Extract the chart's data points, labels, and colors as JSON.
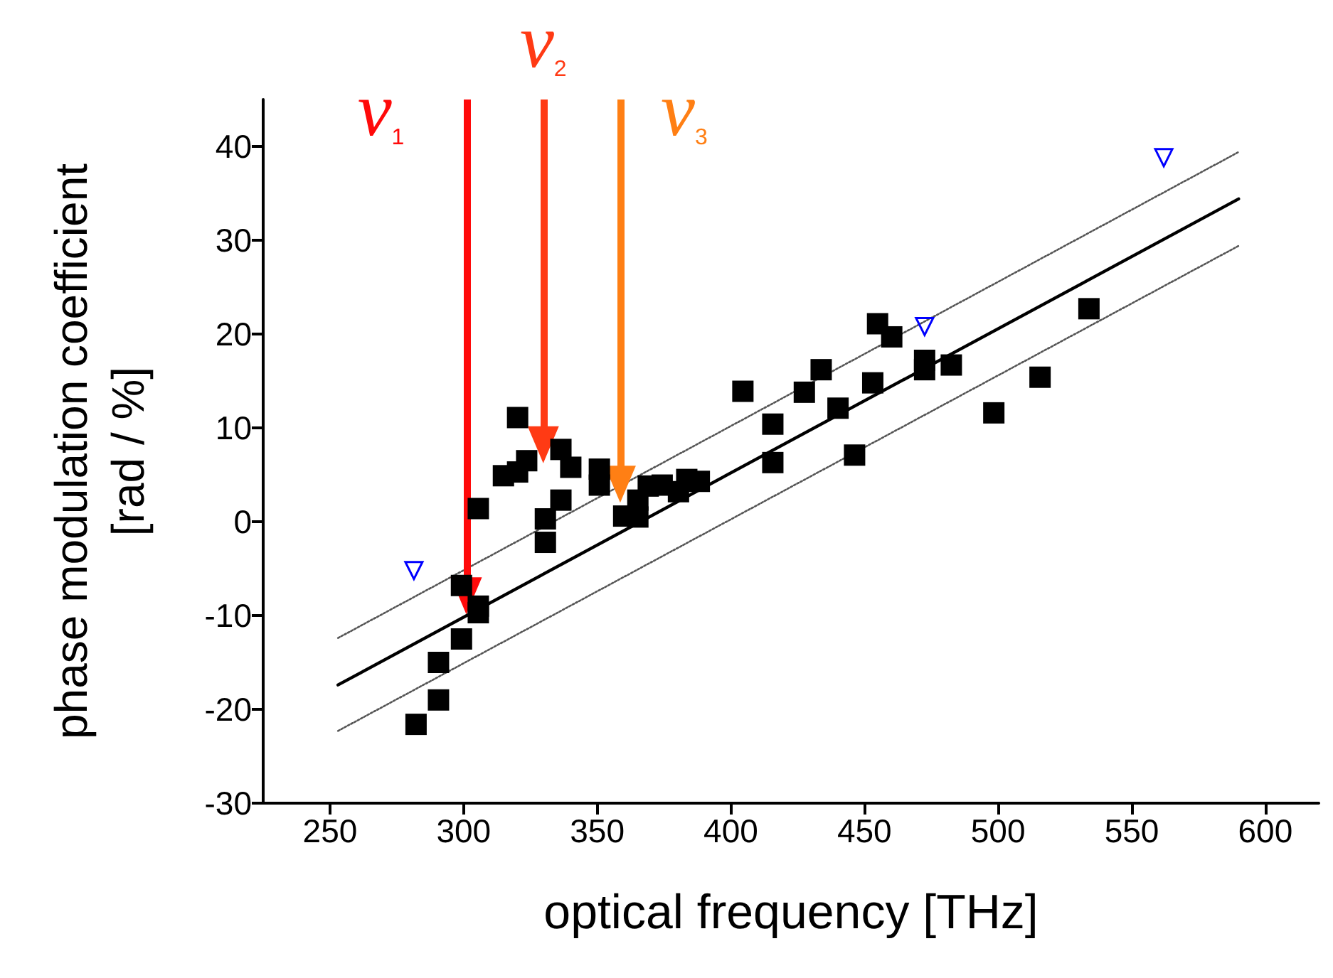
{
  "chart_data": {
    "type": "scatter",
    "xlabel": "optical frequency [THz]",
    "ylabel": "phase modulation coefficient\n[rad / %]",
    "xlim": [
      225,
      620
    ],
    "ylim": [
      -30,
      45
    ],
    "xticks": [
      250,
      300,
      350,
      400,
      450,
      500,
      550,
      600
    ],
    "yticks": [
      -30,
      -20,
      -10,
      0,
      10,
      20,
      30,
      40
    ],
    "grid": false,
    "series": [
      {
        "marker": "square",
        "color": "#000000",
        "x": [
          282.2,
          290.6,
          290.6,
          299.2,
          299.2,
          305.5,
          305.5,
          305.5,
          314.9,
          320.2,
          323.6,
          320.2,
          336.4,
          340.1,
          336.4,
          330.6,
          330.6,
          350.8,
          350.8,
          359.9,
          365.2,
          365.2,
          369.1,
          374.3,
          380.4,
          383.5,
          388.2,
          404.5,
          415.7,
          415.7,
          427.5,
          433.8,
          440.1,
          446.3,
          453.1,
          454.9,
          460.2,
          472.5,
          472.5,
          482.5,
          498.4,
          515.7,
          534.0
        ],
        "values": [
          -21.6,
          -15.0,
          -19.0,
          -12.5,
          -6.8,
          -9.0,
          -9.7,
          1.4,
          4.9,
          5.3,
          6.5,
          11.1,
          7.7,
          5.8,
          2.3,
          0.3,
          -2.2,
          5.6,
          3.9,
          0.6,
          0.5,
          2.3,
          3.8,
          3.9,
          3.2,
          4.5,
          4.3,
          13.9,
          10.4,
          6.3,
          13.8,
          16.2,
          12.1,
          7.1,
          14.8,
          21.1,
          19.7,
          17.2,
          16.2,
          16.7,
          11.6,
          15.4,
          22.7
        ]
      },
      {
        "marker": "triangle",
        "color": "#0000ff",
        "x": [
          281.4,
          472.5,
          562.0
        ],
        "values": [
          -5.2,
          20.8,
          38.8
        ]
      },
      {
        "type": "line",
        "marker": "none",
        "line_style": "solid",
        "color": "#000000",
        "x": [
          253,
          590
        ],
        "values": [
          -17.4,
          34.4
        ]
      },
      {
        "type": "line",
        "marker": "none",
        "line_style": "dotted",
        "color": "#555555",
        "x": [
          253,
          590
        ],
        "values": [
          -12.4,
          39.4
        ]
      },
      {
        "type": "line",
        "marker": "none",
        "line_style": "dotted",
        "color": "#555555",
        "x": [
          253,
          590
        ],
        "values": [
          -22.3,
          29.4
        ]
      }
    ],
    "annotations": [
      {
        "text": "ν$_{1}$",
        "x": 301.0,
        "y": -7.9
      },
      {
        "text": "ν$_{2}$",
        "x": 329.8,
        "y": 8.2
      },
      {
        "text": "ν$_{3}$",
        "x": 358.6,
        "y": 4.0
      }
    ]
  }
}
